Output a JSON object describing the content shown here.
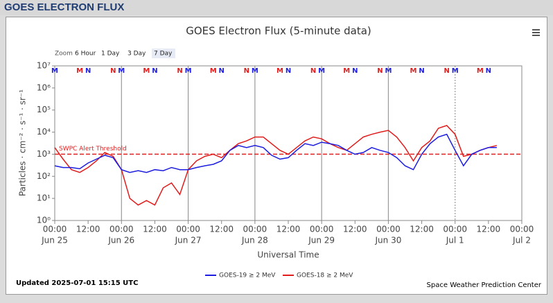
{
  "header": {
    "title": "GOES ELECTRON FLUX"
  },
  "chart_data": {
    "type": "line",
    "title": "GOES Electron Flux (5-minute data)",
    "zoom": {
      "label": "Zoom",
      "buttons": [
        "6 Hour",
        "1 Day",
        "3 Day",
        "7 Day"
      ],
      "active": 3
    },
    "x_label": "Universal Time",
    "y_label": "Particles · cm⁻² · s⁻¹ · sr⁻¹",
    "ylog": true,
    "ylim": [
      1,
      10000000
    ],
    "yticks": [
      {
        "value": 1,
        "label": "10⁰"
      },
      {
        "value": 10,
        "label": "10¹"
      },
      {
        "value": 100,
        "label": "10²"
      },
      {
        "value": 1000,
        "label": "10³"
      },
      {
        "value": 10000,
        "label": "10⁴"
      },
      {
        "value": 100000,
        "label": "10⁵"
      },
      {
        "value": 1000000,
        "label": "10⁶"
      },
      {
        "value": 10000000,
        "label": "10⁷"
      }
    ],
    "xlim": [
      0,
      168
    ],
    "xticks": [
      {
        "value": 0,
        "label": "00:00"
      },
      {
        "value": 12,
        "label": "12:00"
      },
      {
        "value": 24,
        "label": "00:00"
      },
      {
        "value": 36,
        "label": "12:00"
      },
      {
        "value": 48,
        "label": "00:00"
      },
      {
        "value": 60,
        "label": "12:00"
      },
      {
        "value": 72,
        "label": "00:00"
      },
      {
        "value": 84,
        "label": "12:00"
      },
      {
        "value": 96,
        "label": "00:00"
      },
      {
        "value": 108,
        "label": "12:00"
      },
      {
        "value": 120,
        "label": "00:00"
      },
      {
        "value": 132,
        "label": "12:00"
      },
      {
        "value": 144,
        "label": "00:00"
      },
      {
        "value": 156,
        "label": "12:00"
      },
      {
        "value": 168,
        "label": "00:00"
      }
    ],
    "date_ticks": [
      {
        "value": 0,
        "label": "Jun 25"
      },
      {
        "value": 24,
        "label": "Jun 26"
      },
      {
        "value": 48,
        "label": "Jun 27"
      },
      {
        "value": 72,
        "label": "Jun 28"
      },
      {
        "value": 96,
        "label": "Jun 29"
      },
      {
        "value": 120,
        "label": "Jun 30"
      },
      {
        "value": 144,
        "label": "Jul 1"
      },
      {
        "value": 168,
        "label": "Jul 2"
      }
    ],
    "threshold": {
      "value": 1000,
      "label": "SWPC Alert Threshold",
      "color": "#e02020"
    },
    "markers": [
      {
        "x": 0,
        "label": "M",
        "color": "#2020e0"
      },
      {
        "x": 9,
        "label": "M",
        "color": "#e02020"
      },
      {
        "x": 12,
        "label": "N",
        "color": "#2020e0"
      },
      {
        "x": 21,
        "label": "N",
        "color": "#e02020"
      },
      {
        "x": 24,
        "label": "M",
        "color": "#2020e0"
      },
      {
        "x": 33,
        "label": "M",
        "color": "#e02020"
      },
      {
        "x": 36,
        "label": "N",
        "color": "#2020e0"
      },
      {
        "x": 45,
        "label": "N",
        "color": "#e02020"
      },
      {
        "x": 48,
        "label": "M",
        "color": "#2020e0"
      },
      {
        "x": 57,
        "label": "M",
        "color": "#e02020"
      },
      {
        "x": 60,
        "label": "N",
        "color": "#2020e0"
      },
      {
        "x": 69,
        "label": "N",
        "color": "#e02020"
      },
      {
        "x": 72,
        "label": "M",
        "color": "#2020e0"
      },
      {
        "x": 81,
        "label": "M",
        "color": "#e02020"
      },
      {
        "x": 84,
        "label": "N",
        "color": "#2020e0"
      },
      {
        "x": 93,
        "label": "N",
        "color": "#e02020"
      },
      {
        "x": 96,
        "label": "M",
        "color": "#2020e0"
      },
      {
        "x": 105,
        "label": "M",
        "color": "#e02020"
      },
      {
        "x": 108,
        "label": "N",
        "color": "#2020e0"
      },
      {
        "x": 117,
        "label": "N",
        "color": "#e02020"
      },
      {
        "x": 120,
        "label": "M",
        "color": "#2020e0"
      },
      {
        "x": 129,
        "label": "M",
        "color": "#e02020"
      },
      {
        "x": 132,
        "label": "N",
        "color": "#2020e0"
      },
      {
        "x": 141,
        "label": "N",
        "color": "#e02020"
      },
      {
        "x": 144,
        "label": "M",
        "color": "#2020e0"
      },
      {
        "x": 153,
        "label": "M",
        "color": "#e02020"
      },
      {
        "x": 156,
        "label": "N",
        "color": "#2020e0"
      }
    ],
    "x": [
      0,
      3,
      6,
      9,
      12,
      15,
      18,
      21,
      24,
      27,
      30,
      33,
      36,
      39,
      42,
      45,
      48,
      51,
      54,
      57,
      60,
      63,
      66,
      69,
      72,
      75,
      78,
      81,
      84,
      87,
      90,
      93,
      96,
      99,
      102,
      105,
      108,
      111,
      114,
      117,
      120,
      123,
      126,
      129,
      132,
      135,
      138,
      141,
      144,
      147,
      150,
      153,
      156,
      159
    ],
    "series": [
      {
        "name": "GOES-19 ≥ 2 MeV",
        "color": "#1c1ce0",
        "values": [
          300,
          250,
          250,
          220,
          400,
          600,
          900,
          700,
          200,
          150,
          180,
          150,
          200,
          180,
          250,
          200,
          200,
          250,
          300,
          350,
          500,
          1500,
          2500,
          2000,
          2500,
          2000,
          900,
          600,
          700,
          1500,
          3000,
          2500,
          3500,
          3000,
          2500,
          1500,
          1000,
          1200,
          2000,
          1500,
          1200,
          700,
          300,
          200,
          1000,
          3000,
          6000,
          8000,
          1500,
          300,
          1000,
          1500,
          2000,
          2000
        ]
      },
      {
        "name": "GOES-18 ≥ 2 MeV",
        "color": "#e01c1c",
        "values": [
          2000,
          600,
          200,
          150,
          250,
          500,
          1200,
          800,
          200,
          10,
          5,
          8,
          5,
          30,
          50,
          15,
          200,
          500,
          800,
          1000,
          700,
          1500,
          3000,
          4000,
          6000,
          6000,
          3000,
          1500,
          1000,
          2000,
          4000,
          6000,
          5000,
          3000,
          2000,
          1500,
          3000,
          6000,
          8000,
          10000,
          12000,
          6000,
          2000,
          500,
          2000,
          4000,
          15000,
          20000,
          8000,
          800,
          1000,
          1500,
          2000,
          2500
        ]
      }
    ]
  },
  "footer": {
    "updated": "Updated 2025-07-01 15:15 UTC",
    "credit": "Space Weather Prediction Center"
  }
}
